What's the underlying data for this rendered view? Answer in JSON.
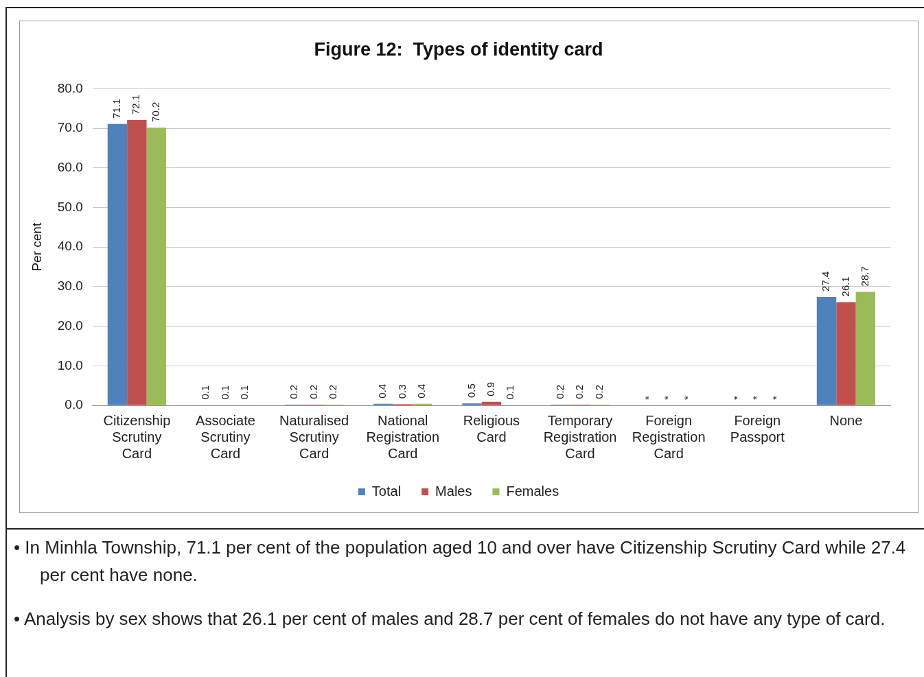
{
  "chart_data": {
    "type": "bar",
    "title": "Figure 12:  Types of identity card",
    "ylabel": "Per cent",
    "categories": [
      "Citizenship Scrutiny Card",
      "Associate Scrutiny Card",
      "Naturalised Scrutiny Card",
      "National Registration Card",
      "Religious Card",
      "Temporary Registration Card",
      "Foreign Registration Card",
      "Foreign Passport",
      "None"
    ],
    "series": [
      {
        "name": "Total",
        "color": "#4f81bd",
        "values": [
          71.1,
          0.1,
          0.2,
          0.4,
          0.5,
          0.2,
          null,
          null,
          27.4
        ],
        "value_labels": [
          "71.1",
          "0.1",
          "0.2",
          "0.4",
          "0.5",
          "0.2",
          "*",
          "*",
          "27.4"
        ]
      },
      {
        "name": "Males",
        "color": "#c0504d",
        "values": [
          72.1,
          0.1,
          0.2,
          0.3,
          0.9,
          0.2,
          null,
          null,
          26.1
        ],
        "value_labels": [
          "72.1",
          "0.1",
          "0.2",
          "0.3",
          "0.9",
          "0.2",
          "*",
          "*",
          "26.1"
        ]
      },
      {
        "name": "Females",
        "color": "#9bbb59",
        "values": [
          70.2,
          0.1,
          0.2,
          0.4,
          0.1,
          0.2,
          null,
          null,
          28.7
        ],
        "value_labels": [
          "70.2",
          "0.1",
          "0.2",
          "0.4",
          "0.1",
          "0.2",
          "*",
          "*",
          "28.7"
        ]
      }
    ],
    "ylim": [
      0,
      80
    ],
    "yticks": [
      {
        "value": 0,
        "label": "0.0"
      },
      {
        "value": 10,
        "label": "10.0"
      },
      {
        "value": 20,
        "label": "20.0"
      },
      {
        "value": 30,
        "label": "30.0"
      },
      {
        "value": 40,
        "label": "40.0"
      },
      {
        "value": 50,
        "label": "50.0"
      },
      {
        "value": 60,
        "label": "60.0"
      },
      {
        "value": 70,
        "label": "70.0"
      },
      {
        "value": 80,
        "label": "80.0"
      }
    ],
    "grid": "y",
    "legend": "bottom",
    "annotations": [
      "• In Minhla Township, 71.1 per cent of the population aged 10 and over have Citizenship Scrutiny Card while 27.4 per cent have none.",
      "• Analysis by sex shows that 26.1 per cent of males and 28.7 per cent of females do not have any type of card."
    ]
  }
}
